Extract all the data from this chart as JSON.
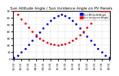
{
  "title": "Sun Altitude Angle / Sun Incidence Angle on PV Panels",
  "title_fontsize": 4.0,
  "legend_labels": [
    "Sun Altitude Angle",
    "Sun Incidence Angle"
  ],
  "legend_colors": [
    "#0000ff",
    "#ff0000"
  ],
  "ylim": [
    0,
    70
  ],
  "ylabel_fontsize": 3.5,
  "yticks": [
    0,
    10,
    20,
    30,
    40,
    50,
    60,
    70
  ],
  "ytick_fontsize": 3.0,
  "xtick_fontsize": 2.8,
  "background_color": "#ffffff",
  "grid_color": "#aaaaaa",
  "altitude_color": "#0000ff",
  "incidence_color": "#ff0000",
  "dot_size": 1.5,
  "hours": [
    5.5,
    6.0,
    6.5,
    7.0,
    7.5,
    8.0,
    8.5,
    9.0,
    9.5,
    10.0,
    10.5,
    11.0,
    11.5,
    12.0,
    12.5,
    13.0,
    13.5,
    14.0,
    14.5,
    15.0,
    15.5,
    16.0,
    16.5,
    17.0,
    17.5,
    18.0,
    18.5
  ],
  "altitude": [
    2,
    5,
    10,
    15,
    21,
    27,
    33,
    39,
    45,
    51,
    56,
    60,
    63,
    65,
    63,
    60,
    56,
    51,
    45,
    39,
    33,
    27,
    21,
    15,
    10,
    5,
    2
  ],
  "incidence": [
    70,
    65,
    58,
    52,
    46,
    40,
    35,
    30,
    27,
    24,
    22,
    21,
    20,
    21,
    22,
    24,
    27,
    30,
    35,
    40,
    46,
    52,
    58,
    65,
    70,
    70,
    70
  ],
  "xtick_labels": [
    "05:30",
    "06:00",
    "06:30",
    "07:00",
    "07:30",
    "08:00",
    "08:30",
    "09:00",
    "09:30",
    "10:00",
    "10:30",
    "11:00",
    "11:30",
    "12:00",
    "12:30",
    "13:00",
    "13:30",
    "14:00",
    "14:30",
    "15:00",
    "15:30",
    "16:00",
    "16:30",
    "17:00",
    "17:30",
    "18:00",
    "18:30"
  ]
}
